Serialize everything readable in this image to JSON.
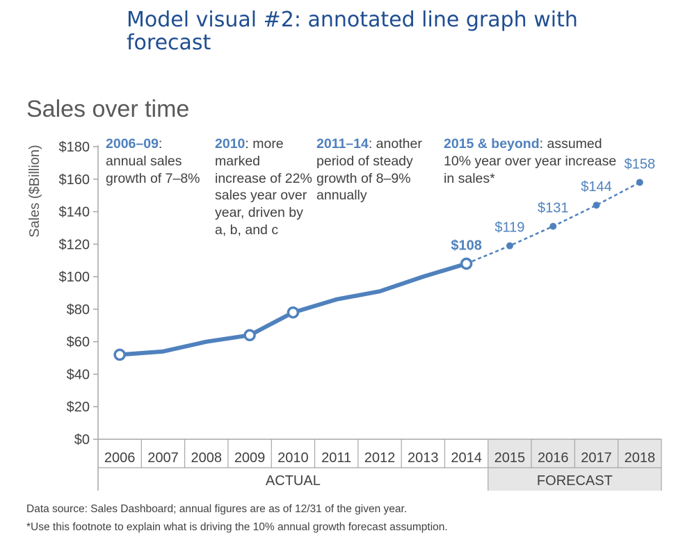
{
  "page": {
    "title": "Model visual #2: annotated line graph with forecast"
  },
  "chart_data": {
    "type": "line",
    "title": "Sales over time",
    "ylabel": "Sales ($Billion)",
    "ylim": [
      0,
      180
    ],
    "yticks": [
      "$0",
      "$20",
      "$40",
      "$60",
      "$80",
      "$100",
      "$120",
      "$140",
      "$160",
      "$180"
    ],
    "categories": [
      "2006",
      "2007",
      "2008",
      "2009",
      "2010",
      "2011",
      "2012",
      "2013",
      "2014",
      "2015",
      "2016",
      "2017",
      "2018"
    ],
    "groups": [
      {
        "label": "ACTUAL",
        "categories": [
          "2006",
          "2007",
          "2008",
          "2009",
          "2010",
          "2011",
          "2012",
          "2013",
          "2014"
        ]
      },
      {
        "label": "FORECAST",
        "categories": [
          "2015",
          "2016",
          "2017",
          "2018"
        ],
        "shaded": true
      }
    ],
    "series": [
      {
        "style": "solid",
        "color": "#4f81bd",
        "x": [
          "2006",
          "2007",
          "2008",
          "2009",
          "2010",
          "2011",
          "2012",
          "2013",
          "2014"
        ],
        "values": [
          52,
          54,
          60,
          64,
          78,
          86,
          91,
          100,
          108
        ],
        "open_markers": [
          "2006",
          "2009",
          "2010",
          "2014"
        ]
      },
      {
        "style": "dashed",
        "color": "#4f81bd",
        "x": [
          "2014",
          "2015",
          "2016",
          "2017",
          "2018"
        ],
        "values": [
          108,
          119,
          131,
          144,
          158
        ]
      }
    ],
    "data_labels": [
      {
        "x": "2014",
        "text": "$108",
        "bold": true
      },
      {
        "x": "2015",
        "text": "$119"
      },
      {
        "x": "2016",
        "text": "$131"
      },
      {
        "x": "2017",
        "text": "$144"
      },
      {
        "x": "2018",
        "text": "$158"
      }
    ],
    "annotations": [
      {
        "highlight": "2006–09",
        "rest": ": annual sales growth of 7–8%"
      },
      {
        "highlight": "2010",
        "rest": ": more marked increase of 22% sales year over year, driven by a, b, and c"
      },
      {
        "highlight": "2011–14",
        "rest": ": another period of steady growth of 8–9% annually"
      },
      {
        "highlight": "2015 & beyond",
        "rest": ": assumed 10% year over year increase in sales*"
      }
    ],
    "grid": false,
    "colors": {
      "line": "#4f81bd",
      "axis": "#a6a6a6",
      "text": "#404040",
      "forecast_band": "#e6e6e6"
    }
  },
  "footnotes": {
    "source": "Data source: Sales Dashboard; annual figures are as of 12/31 of the given year.",
    "assumption": "*Use this footnote to explain what is driving the 10% annual growth forecast assumption."
  }
}
